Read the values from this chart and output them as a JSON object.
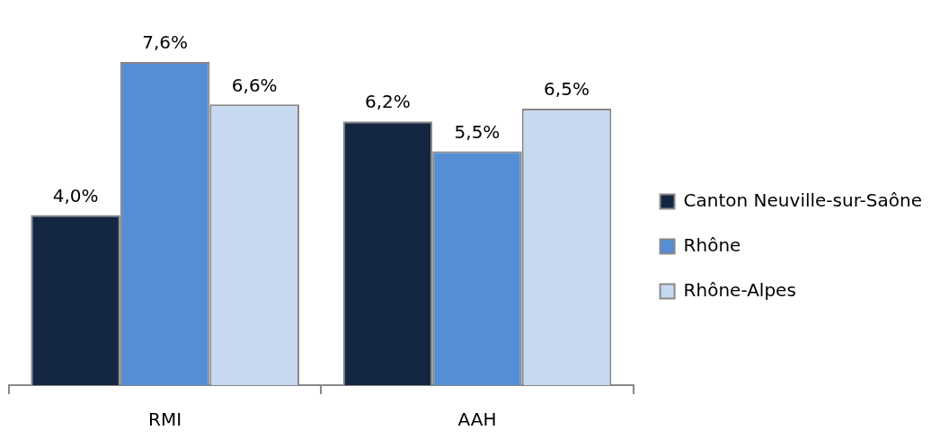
{
  "chart_data": {
    "type": "bar",
    "categories": [
      "RMI",
      "AAH"
    ],
    "series": [
      {
        "name": "Canton Neuville-sur-Saône",
        "color": "#132642",
        "values": [
          4.0,
          6.2
        ],
        "value_labels": [
          "4,0%",
          "6,2%"
        ]
      },
      {
        "name": "Rhône",
        "color": "#558ed5",
        "values": [
          7.6,
          5.5
        ],
        "value_labels": [
          "7,6%",
          "5,5%"
        ]
      },
      {
        "name": "Rhône-Alpes",
        "color": "#c6d9f1",
        "values": [
          6.6,
          6.5
        ],
        "value_labels": [
          "6,6%",
          "6,5%"
        ]
      }
    ],
    "tick_labels": "x",
    "grid": false,
    "legend": "right"
  }
}
